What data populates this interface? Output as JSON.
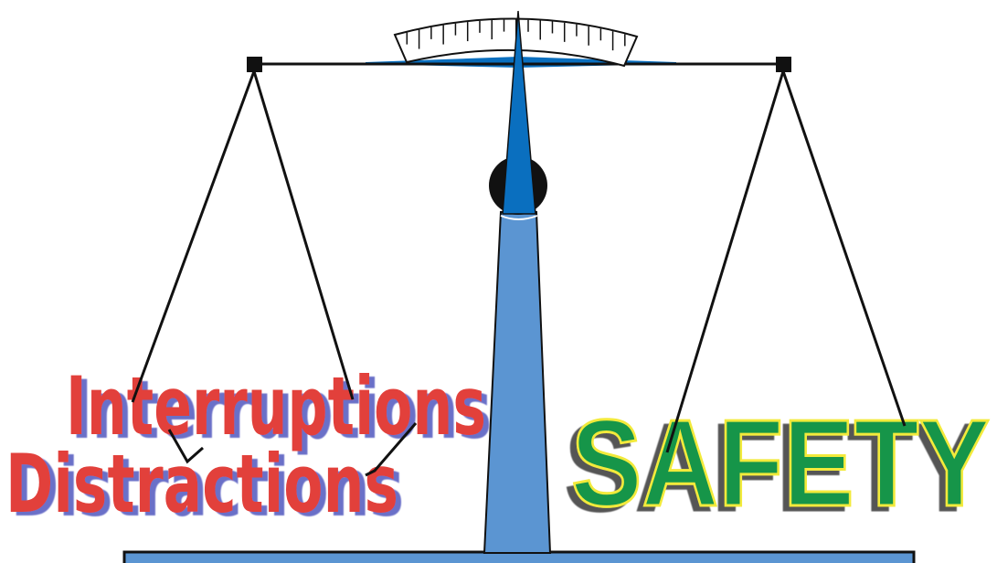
{
  "labels": {
    "left_top": "Interruptions",
    "left_bottom": "Distractions",
    "right": "SAFETY"
  }
}
